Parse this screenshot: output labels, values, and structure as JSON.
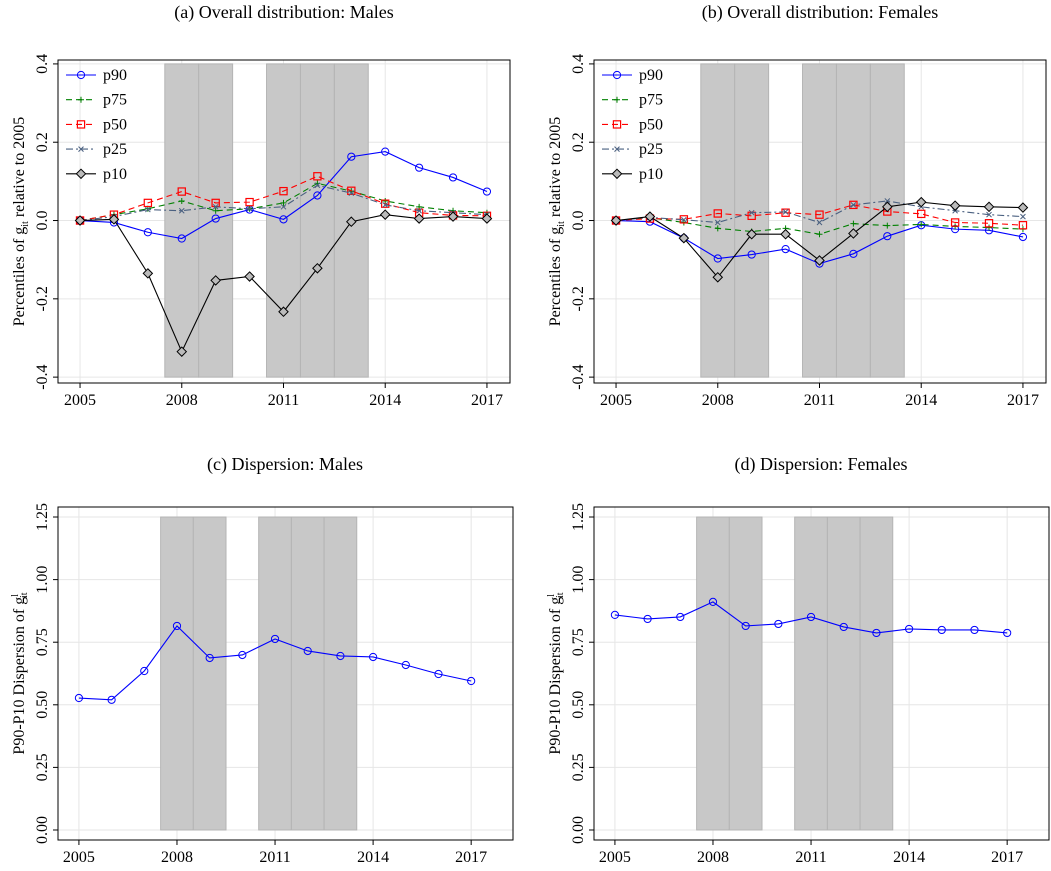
{
  "chart_data": [
    {
      "type": "line",
      "title": "(a) Overall distribution: Males",
      "ylabel": [
        "Percentiles of g",
        "it",
        " relative to 2005"
      ],
      "x": [
        2005,
        2006,
        2007,
        2008,
        2009,
        2010,
        2011,
        2012,
        2013,
        2014,
        2015,
        2016,
        2017
      ],
      "series": [
        {
          "name": "p90",
          "color": "#0000ff",
          "marker": "circle",
          "dash": "solid",
          "values": [
            0,
            -0.005,
            -0.03,
            -0.046,
            0.005,
            0.028,
            0.003,
            0.064,
            0.163,
            0.176,
            0.135,
            0.11,
            0.074
          ]
        },
        {
          "name": "p75",
          "color": "#008000",
          "marker": "plus",
          "dash": "dash",
          "values": [
            0,
            0.015,
            0.03,
            0.05,
            0.025,
            0.03,
            0.045,
            0.095,
            0.075,
            0.05,
            0.035,
            0.025,
            0.02
          ]
        },
        {
          "name": "p50",
          "color": "#ff0000",
          "marker": "square",
          "dash": "dash",
          "values": [
            0,
            0.015,
            0.045,
            0.074,
            0.045,
            0.047,
            0.075,
            0.113,
            0.076,
            0.043,
            0.02,
            0.013,
            0.012
          ]
        },
        {
          "name": "p25",
          "color": "#4a6080",
          "marker": "x",
          "dash": "dashdot",
          "values": [
            0,
            0.01,
            0.028,
            0.025,
            0.035,
            0.03,
            0.035,
            0.09,
            0.07,
            0.04,
            0.025,
            0.02,
            0.015
          ]
        },
        {
          "name": "p10",
          "color": "#000000",
          "marker": "diamond",
          "dash": "solid",
          "values": [
            0,
            0.003,
            -0.135,
            -0.335,
            -0.153,
            -0.143,
            -0.233,
            -0.122,
            -0.003,
            0.015,
            0.005,
            0.01,
            0.005
          ]
        }
      ],
      "shaded": [
        [
          2007.5,
          2008.5
        ],
        [
          2008.5,
          2009.5
        ],
        [
          2010.5,
          2011.5
        ],
        [
          2011.5,
          2012.5
        ],
        [
          2012.5,
          2013.5
        ]
      ],
      "xlim": [
        2004.35,
        2017.68
      ],
      "ylim": [
        -0.415,
        0.41
      ],
      "xticks": [
        2005,
        2008,
        2011,
        2014,
        2017
      ],
      "yticks": [
        -0.4,
        -0.2,
        {
          "value": 0,
          "label": "0.0"
        },
        0.2,
        0.4
      ],
      "grid": true,
      "legend": "upper left"
    },
    {
      "type": "line",
      "title": "(b) Overall distribution: Females",
      "ylabel": [
        "Percentiles of g",
        "it",
        " relative to 2005"
      ],
      "x": [
        2005,
        2006,
        2007,
        2008,
        2009,
        2010,
        2011,
        2012,
        2013,
        2014,
        2015,
        2016,
        2017
      ],
      "series": [
        {
          "name": "p90",
          "color": "#0000ff",
          "marker": "circle",
          "dash": "solid",
          "values": [
            0,
            -0.003,
            -0.045,
            -0.097,
            -0.087,
            -0.073,
            -0.11,
            -0.085,
            -0.04,
            -0.012,
            -0.022,
            -0.025,
            -0.042
          ]
        },
        {
          "name": "p75",
          "color": "#008000",
          "marker": "plus",
          "dash": "dash",
          "values": [
            0,
            0.007,
            -0.005,
            -0.02,
            -0.028,
            -0.02,
            -0.035,
            -0.008,
            -0.013,
            -0.01,
            -0.015,
            -0.018,
            -0.022
          ]
        },
        {
          "name": "p50",
          "color": "#ff0000",
          "marker": "square",
          "dash": "dash",
          "values": [
            0,
            0.005,
            0.003,
            0.018,
            0.012,
            0.02,
            0.015,
            0.04,
            0.023,
            0.017,
            -0.005,
            -0.007,
            -0.012
          ]
        },
        {
          "name": "p25",
          "color": "#4a6080",
          "marker": "x",
          "dash": "dashdot",
          "values": [
            0,
            0.008,
            0.002,
            -0.005,
            0.02,
            0.022,
            -0.005,
            0.04,
            0.05,
            0.035,
            0.025,
            0.015,
            0.01
          ]
        },
        {
          "name": "p10",
          "color": "#000000",
          "marker": "diamond",
          "dash": "solid",
          "values": [
            0,
            0.01,
            -0.045,
            -0.145,
            -0.035,
            -0.035,
            -0.102,
            -0.033,
            0.035,
            0.047,
            0.038,
            0.035,
            0.033
          ]
        }
      ],
      "shaded": [
        [
          2007.5,
          2008.5
        ],
        [
          2008.5,
          2009.5
        ],
        [
          2010.5,
          2011.5
        ],
        [
          2011.5,
          2012.5
        ],
        [
          2012.5,
          2013.5
        ]
      ],
      "xlim": [
        2004.35,
        2017.68
      ],
      "ylim": [
        -0.415,
        0.41
      ],
      "xticks": [
        2005,
        2008,
        2011,
        2014,
        2017
      ],
      "yticks": [
        -0.4,
        -0.2,
        {
          "value": 0,
          "label": "0.0"
        },
        0.2,
        0.4
      ],
      "grid": true,
      "legend": "upper left"
    },
    {
      "type": "line",
      "title": "(c) Dispersion: Males",
      "ylabel": [
        "P90-P10 Dispersion of g",
        "l",
        "it"
      ],
      "x": [
        2005,
        2006,
        2007,
        2008,
        2009,
        2010,
        2011,
        2012,
        2013,
        2014,
        2015,
        2016,
        2017
      ],
      "series": [
        {
          "color": "#0000ff",
          "marker": "circle",
          "dash": "solid",
          "values": [
            0.527,
            0.52,
            0.635,
            0.815,
            0.687,
            0.699,
            0.763,
            0.715,
            0.695,
            0.691,
            0.659,
            0.623,
            0.595
          ]
        }
      ],
      "shaded": [
        [
          2007.5,
          2008.5
        ],
        [
          2008.5,
          2009.5
        ],
        [
          2010.5,
          2011.5
        ],
        [
          2011.5,
          2012.5
        ],
        [
          2012.5,
          2013.5
        ]
      ],
      "xlim": [
        2004.36,
        2018.28
      ],
      "ylim": [
        -0.04,
        1.29
      ],
      "xticks": [
        2005,
        2008,
        2011,
        2014,
        2017
      ],
      "yticks": [
        {
          "value": 0,
          "label": "0.00"
        },
        0.25,
        {
          "value": 0.5,
          "label": "0.50"
        },
        0.75,
        {
          "value": 1,
          "label": "1.00"
        },
        1.25
      ],
      "grid": true
    },
    {
      "type": "line",
      "title": "(d) Dispersion: Females",
      "ylabel": [
        "P90-P10 Dispersion of g",
        "l",
        "it"
      ],
      "x": [
        2005,
        2006,
        2007,
        2008,
        2009,
        2010,
        2011,
        2012,
        2013,
        2014,
        2015,
        2016,
        2017
      ],
      "series": [
        {
          "color": "#0000ff",
          "marker": "circle",
          "dash": "solid",
          "values": [
            0.859,
            0.843,
            0.851,
            0.911,
            0.815,
            0.823,
            0.851,
            0.811,
            0.787,
            0.803,
            0.799,
            0.799,
            0.787
          ]
        }
      ],
      "shaded": [
        [
          2007.5,
          2008.5
        ],
        [
          2008.5,
          2009.5
        ],
        [
          2010.5,
          2011.5
        ],
        [
          2011.5,
          2012.5
        ],
        [
          2012.5,
          2013.5
        ]
      ],
      "xlim": [
        2004.36,
        2018.28
      ],
      "ylim": [
        -0.04,
        1.29
      ],
      "xticks": [
        2005,
        2008,
        2011,
        2014,
        2017
      ],
      "yticks": [
        {
          "value": 0,
          "label": "0.00"
        },
        0.25,
        {
          "value": 0.5,
          "label": "0.50"
        },
        0.75,
        {
          "value": 1,
          "label": "1.00"
        },
        1.25
      ],
      "grid": true
    }
  ]
}
